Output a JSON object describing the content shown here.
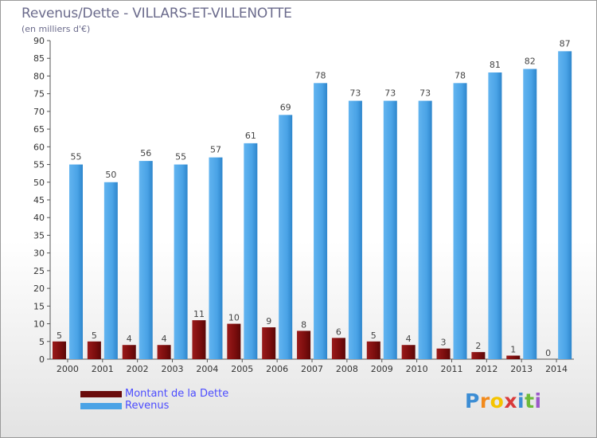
{
  "header": {
    "title": "Revenus/Dette - VILLARS-ET-VILLENOTTE",
    "subtitle": "(en milliers d'€)"
  },
  "legend": {
    "items": [
      {
        "label": "Montant de la Dette",
        "color": "#7a0d0d"
      },
      {
        "label": "Revenus",
        "color": "#4aa3e6"
      }
    ]
  },
  "logo": {
    "letters": [
      "P",
      "r",
      "o",
      "x",
      "i",
      "t",
      "i"
    ],
    "colors": [
      "#3c8dd4",
      "#f28a1c",
      "#f5c400",
      "#d93a3a",
      "#3c8dd4",
      "#6dbb3a",
      "#9c59c9"
    ]
  },
  "chart_data": {
    "type": "bar",
    "title": "Revenus/Dette - VILLARS-ET-VILLENOTTE",
    "ylabel": "(en milliers d'€)",
    "xlabel": "",
    "ylim": [
      0,
      90
    ],
    "yticks": [
      0,
      5,
      10,
      15,
      20,
      25,
      30,
      35,
      40,
      45,
      50,
      55,
      60,
      65,
      70,
      75,
      80,
      85,
      90
    ],
    "grid": false,
    "legend_position": "bottom-left",
    "categories": [
      "2000",
      "2001",
      "2002",
      "2003",
      "2004",
      "2005",
      "2006",
      "2007",
      "2008",
      "2009",
      "2010",
      "2011",
      "2012",
      "2013",
      "2014"
    ],
    "series": [
      {
        "name": "Montant de la Dette",
        "color": "#7a0d0d",
        "values": [
          5,
          5,
          4,
          4,
          11,
          10,
          9,
          8,
          6,
          5,
          4,
          3,
          2,
          1,
          0
        ]
      },
      {
        "name": "Revenus",
        "color": "#4aa3e6",
        "values": [
          55,
          50,
          56,
          55,
          57,
          61,
          69,
          78,
          73,
          73,
          73,
          78,
          81,
          82,
          87
        ]
      }
    ]
  }
}
